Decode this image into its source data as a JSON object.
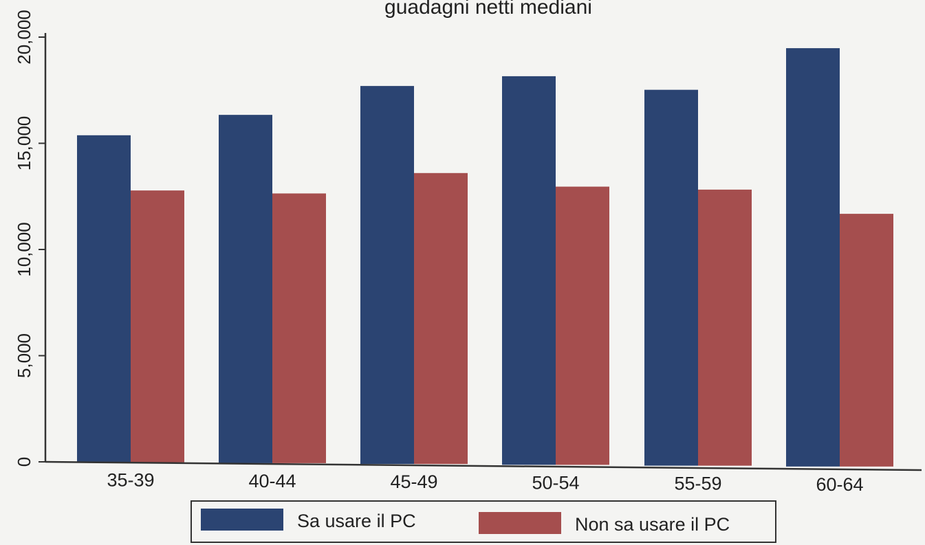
{
  "chart_data": {
    "type": "bar",
    "title": "guadagni netti mediani",
    "categories": [
      "35-39",
      "40-44",
      "45-49",
      "50-54",
      "55-59",
      "60-64"
    ],
    "series": [
      {
        "name": "Sa usare il PC",
        "color": "#2b4472",
        "values": [
          15400,
          16400,
          17800,
          18300,
          17700,
          19700
        ]
      },
      {
        "name": "Non sa usare il PC",
        "color": "#a54e4e",
        "values": [
          12800,
          12700,
          13700,
          13100,
          13000,
          11900
        ]
      }
    ],
    "ylim": [
      0,
      20000
    ],
    "yticks": [
      0,
      5000,
      10000,
      15000,
      20000
    ],
    "ytick_labels": [
      "0",
      "5,000",
      "10,000",
      "15,000",
      "20,000"
    ],
    "xlabel": "",
    "ylabel": "",
    "grid": false,
    "legend": {
      "placement": "bottom-center",
      "entries": [
        "Sa usare il PC",
        "Non sa usare il PC"
      ]
    }
  }
}
